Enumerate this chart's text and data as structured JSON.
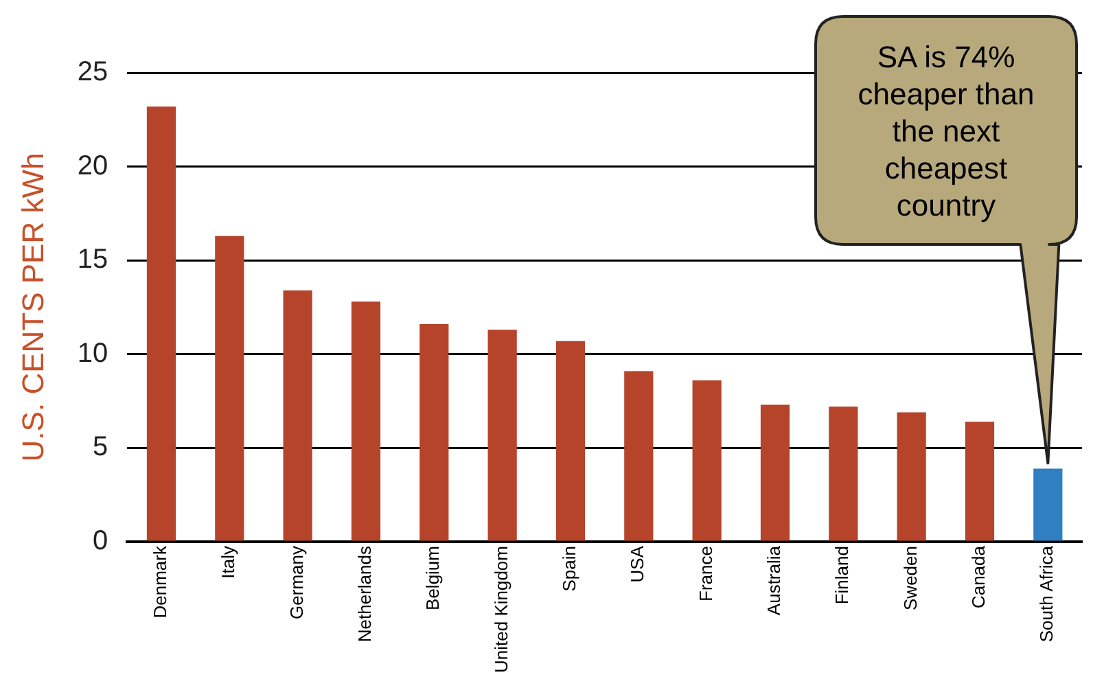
{
  "chart_data": {
    "type": "bar",
    "ylabel": "U.S. CENTS PER kWh",
    "categories": [
      "Denmark",
      "Italy",
      "Germany",
      "Netherlands",
      "Belgium",
      "United Kingdom",
      "Spain",
      "USA",
      "France",
      "Australia",
      "Finland",
      "Sweden",
      "Canada",
      "South Africa"
    ],
    "values": [
      23.2,
      16.3,
      13.4,
      12.8,
      11.6,
      11.3,
      10.7,
      9.1,
      8.6,
      7.3,
      7.2,
      6.9,
      6.4,
      3.9
    ],
    "colors": [
      "#b5442a",
      "#b5442a",
      "#b5442a",
      "#b5442a",
      "#b5442a",
      "#b5442a",
      "#b5442a",
      "#b5442a",
      "#b5442a",
      "#b5442a",
      "#b5442a",
      "#b5442a",
      "#b5442a",
      "#2f7fc1"
    ],
    "ylim": [
      0,
      25
    ],
    "yticks": [
      0,
      5,
      10,
      15,
      20,
      25
    ],
    "grid": "y",
    "annotations": [
      "SA is 74% cheaper than the next cheapest country"
    ]
  }
}
